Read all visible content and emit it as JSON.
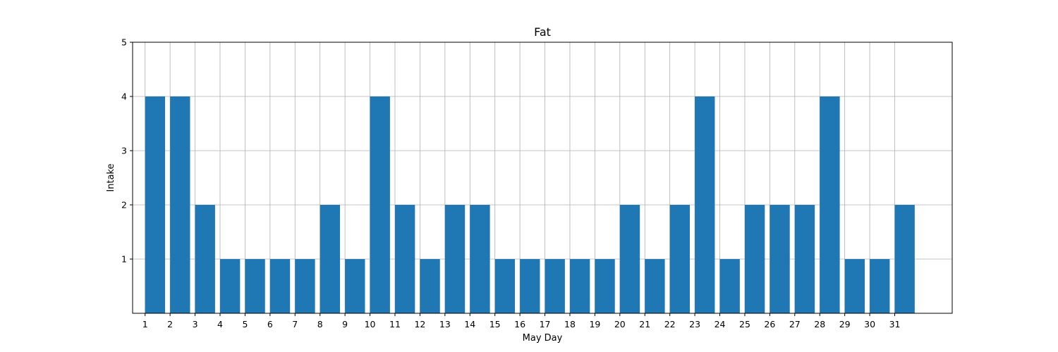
{
  "chart_data": {
    "type": "bar",
    "title": "Fat",
    "xlabel": "May Day",
    "ylabel": "Intake",
    "categories": [
      "1",
      "2",
      "3",
      "4",
      "5",
      "6",
      "7",
      "8",
      "9",
      "10",
      "11",
      "12",
      "13",
      "14",
      "15",
      "16",
      "17",
      "18",
      "19",
      "20",
      "21",
      "22",
      "23",
      "24",
      "25",
      "26",
      "27",
      "28",
      "29",
      "30",
      "31"
    ],
    "values": [
      4,
      4,
      2,
      1,
      1,
      1,
      1,
      2,
      1,
      4,
      2,
      1,
      2,
      2,
      1,
      1,
      1,
      1,
      1,
      2,
      1,
      2,
      4,
      1,
      2,
      2,
      2,
      4,
      1,
      1,
      2
    ],
    "yticks": [
      1,
      2,
      3,
      4,
      5
    ],
    "ylim": [
      0,
      5
    ],
    "xlim": [
      -0.5,
      32.3
    ],
    "bar_color": "#1f77b4",
    "grid": true,
    "bar_alignment": "edge"
  }
}
